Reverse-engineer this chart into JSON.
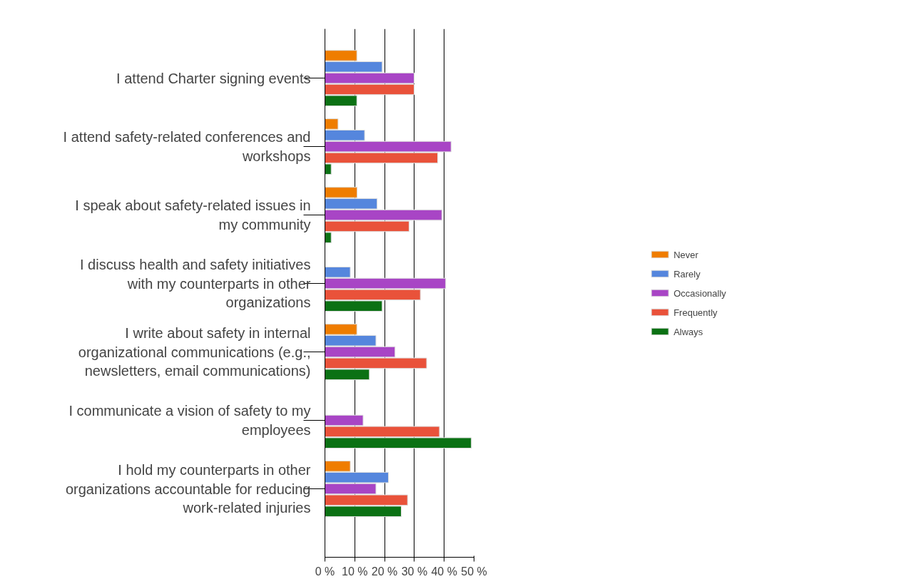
{
  "chart_data": {
    "type": "bar",
    "orientation": "horizontal",
    "categories": [
      "I attend Charter signing events",
      "I attend safety-related conferences and workshops",
      "I speak about safety-related issues in my community",
      "I discuss health and safety initiatives with my counterparts in other organizations",
      "I write about safety in internal organizational communications (e.g., newsletters, email communications)",
      "I communicate a vision of safety to my employees",
      "I hold my counterparts in other organizations accountable for reducing work-related injuries"
    ],
    "series": [
      {
        "name": "Never",
        "color": "#ef7d00",
        "values": [
          10.7,
          4.4,
          10.8,
          null,
          10.7,
          null,
          8.5
        ]
      },
      {
        "name": "Rarely",
        "color": "#5586dd",
        "values": [
          19.2,
          13.3,
          17.5,
          8.5,
          17.1,
          null,
          21.3
        ]
      },
      {
        "name": "Occasionally",
        "color": "#a845c5",
        "values": [
          29.9,
          42.3,
          39.2,
          40.5,
          23.5,
          12.8,
          17.1
        ]
      },
      {
        "name": "Frequently",
        "color": "#e9523a",
        "values": [
          29.9,
          37.8,
          28.2,
          32.0,
          34.1,
          38.4,
          27.7
        ]
      },
      {
        "name": "Always",
        "color": "#0b7114",
        "values": [
          10.7,
          2.1,
          2.1,
          19.2,
          14.9,
          49.1,
          25.6
        ]
      }
    ],
    "xlim": [
      0,
      50
    ],
    "xticks": [
      {
        "value": 0,
        "label": "0 %"
      },
      {
        "value": 10,
        "label": "10 %"
      },
      {
        "value": 20,
        "label": "20 %"
      },
      {
        "value": 30,
        "label": "30 %"
      },
      {
        "value": 40,
        "label": "40 %"
      },
      {
        "value": 50,
        "label": "50 %"
      }
    ],
    "grid": "x",
    "legend": "right"
  }
}
